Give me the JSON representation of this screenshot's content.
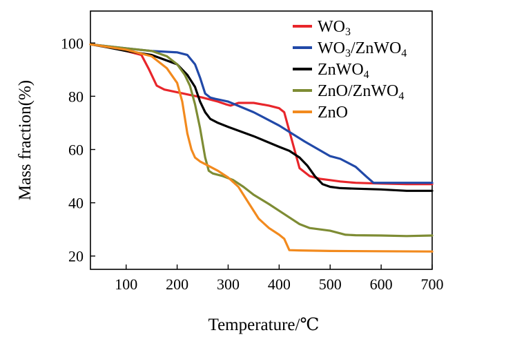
{
  "chart_data": {
    "type": "line",
    "title": "",
    "xlabel": "Temperature/℃",
    "ylabel": "Mass fraction(%)",
    "xlim": [
      30,
      700
    ],
    "ylim": [
      15,
      112
    ],
    "x_ticks": [
      100,
      200,
      300,
      400,
      500,
      600,
      700
    ],
    "y_ticks": [
      20,
      40,
      60,
      80,
      100
    ],
    "x_tick_labels": [
      "100",
      "200",
      "300",
      "400",
      "500",
      "600",
      "700"
    ],
    "y_tick_labels": [
      "20",
      "40",
      "60",
      "80",
      "100"
    ],
    "grid": false,
    "legend_position": "top-right",
    "series": [
      {
        "name": "WO3",
        "label_main": "WO",
        "label_sub": "3",
        "label_rest": "",
        "label_sub2": "",
        "color": "#e8262b",
        "x": [
          30,
          60,
          100,
          130,
          145,
          160,
          175,
          200,
          250,
          280,
          295,
          305,
          320,
          350,
          380,
          400,
          410,
          420,
          430,
          440,
          460,
          480,
          500,
          520,
          550,
          600,
          650,
          700
        ],
        "y": [
          99.5,
          98.8,
          97,
          95.5,
          90,
          84,
          82.5,
          81.5,
          79.5,
          78,
          77,
          76.5,
          77.5,
          77.5,
          76.5,
          75.5,
          74,
          67,
          60,
          53,
          50,
          49,
          48.5,
          48,
          47.5,
          47.2,
          47,
          47
        ]
      },
      {
        "name": "WO3/ZnWO4",
        "label_main": "WO",
        "label_sub": "3",
        "label_rest": "/ZnWO",
        "label_sub2": "4",
        "color": "#2149a8",
        "x": [
          30,
          100,
          150,
          200,
          220,
          235,
          245,
          255,
          265,
          275,
          300,
          350,
          400,
          450,
          500,
          520,
          550,
          570,
          585,
          600,
          650,
          700
        ],
        "y": [
          99.5,
          98,
          97,
          96.5,
          95.5,
          92,
          87,
          81,
          79.5,
          79,
          78,
          74,
          69,
          63,
          57.5,
          56.5,
          53.5,
          50,
          47.5,
          47.5,
          47.5,
          47.5
        ]
      },
      {
        "name": "ZnWO4",
        "label_main": "ZnWO",
        "label_sub": "4",
        "label_rest": "",
        "label_sub2": "",
        "color": "#000000",
        "x": [
          30,
          60,
          100,
          150,
          200,
          220,
          235,
          245,
          255,
          265,
          280,
          300,
          350,
          400,
          420,
          440,
          455,
          470,
          485,
          500,
          520,
          550,
          600,
          650,
          700
        ],
        "y": [
          99.5,
          98.5,
          97,
          95.5,
          92,
          88,
          83.5,
          78,
          74,
          71.5,
          70,
          68.5,
          65,
          61,
          59.5,
          57,
          54,
          50,
          47,
          46,
          45.5,
          45.3,
          45,
          44.5,
          44.5
        ]
      },
      {
        "name": "ZnO/ZnWO4",
        "label_main": "ZnO/ZnWO",
        "label_sub": "4",
        "label_rest": "",
        "label_sub2": "",
        "color": "#7e8c34",
        "x": [
          30,
          100,
          150,
          180,
          200,
          215,
          225,
          235,
          245,
          255,
          262,
          270,
          290,
          310,
          330,
          350,
          380,
          400,
          420,
          440,
          460,
          500,
          520,
          530,
          550,
          600,
          650,
          700
        ],
        "y": [
          99.5,
          98,
          97,
          95,
          92,
          88,
          84,
          77,
          68,
          57,
          52,
          51,
          50,
          48.5,
          46,
          43,
          39.5,
          37,
          34.5,
          32,
          30.5,
          29.5,
          28.5,
          28,
          27.8,
          27.7,
          27.5,
          27.7
        ]
      },
      {
        "name": "ZnO",
        "label_main": "ZnO",
        "label_sub": "",
        "label_rest": "",
        "label_sub2": "",
        "color": "#f28a1e",
        "x": [
          30,
          100,
          150,
          180,
          200,
          210,
          215,
          220,
          228,
          235,
          245,
          260,
          280,
          300,
          320,
          340,
          360,
          380,
          400,
          410,
          420,
          440,
          500,
          600,
          700
        ],
        "y": [
          99.5,
          97.5,
          95,
          90.5,
          85,
          78,
          72,
          66,
          60,
          57,
          55.5,
          54,
          52,
          49.5,
          46,
          40,
          34,
          30.5,
          28,
          26.5,
          22.2,
          22.1,
          21.9,
          21.8,
          21.7
        ]
      }
    ]
  }
}
